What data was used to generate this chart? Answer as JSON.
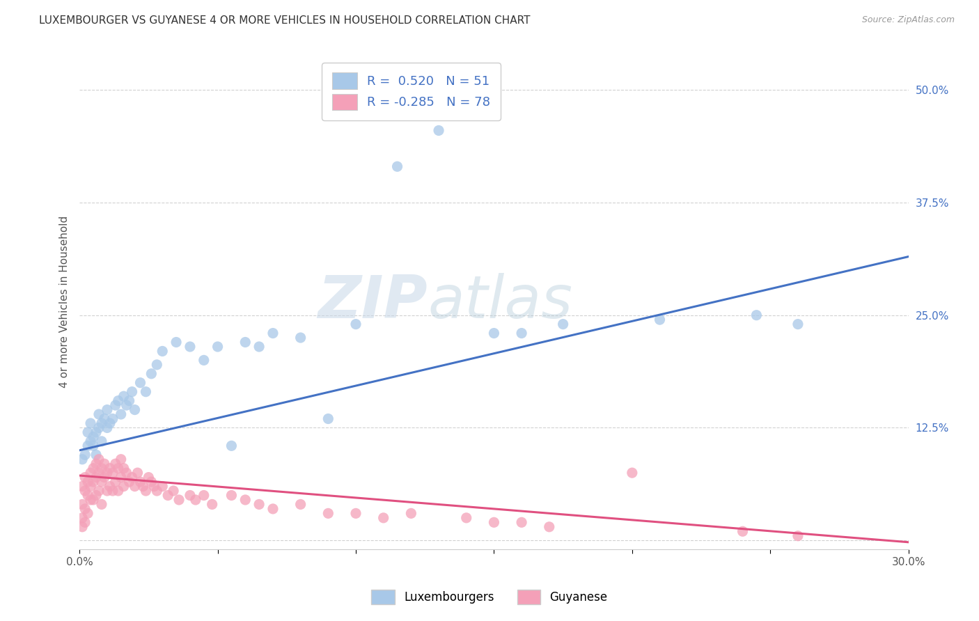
{
  "title": "LUXEMBOURGER VS GUYANESE 4 OR MORE VEHICLES IN HOUSEHOLD CORRELATION CHART",
  "source": "Source: ZipAtlas.com",
  "ylabel": "4 or more Vehicles in Household",
  "xlim": [
    0.0,
    0.3
  ],
  "ylim": [
    -0.01,
    0.54
  ],
  "blue_R": 0.52,
  "blue_N": 51,
  "pink_R": -0.285,
  "pink_N": 78,
  "blue_color": "#a8c8e8",
  "pink_color": "#f4a0b8",
  "blue_line_color": "#4472c4",
  "pink_line_color": "#e05080",
  "background_color": "#ffffff",
  "grid_color": "#cccccc",
  "watermark_zip": "ZIP",
  "watermark_atlas": "atlas",
  "legend_labels": [
    "Luxembourgers",
    "Guyanese"
  ],
  "blue_scatter_x": [
    0.001,
    0.002,
    0.003,
    0.003,
    0.004,
    0.004,
    0.005,
    0.005,
    0.006,
    0.006,
    0.007,
    0.007,
    0.008,
    0.008,
    0.009,
    0.01,
    0.01,
    0.011,
    0.012,
    0.013,
    0.014,
    0.015,
    0.016,
    0.017,
    0.018,
    0.019,
    0.02,
    0.022,
    0.024,
    0.026,
    0.028,
    0.03,
    0.035,
    0.04,
    0.045,
    0.05,
    0.055,
    0.06,
    0.065,
    0.07,
    0.08,
    0.09,
    0.1,
    0.115,
    0.13,
    0.15,
    0.16,
    0.175,
    0.21,
    0.245,
    0.26
  ],
  "blue_scatter_y": [
    0.09,
    0.095,
    0.105,
    0.12,
    0.11,
    0.13,
    0.115,
    0.105,
    0.12,
    0.095,
    0.125,
    0.14,
    0.11,
    0.13,
    0.135,
    0.125,
    0.145,
    0.13,
    0.135,
    0.15,
    0.155,
    0.14,
    0.16,
    0.15,
    0.155,
    0.165,
    0.145,
    0.175,
    0.165,
    0.185,
    0.195,
    0.21,
    0.22,
    0.215,
    0.2,
    0.215,
    0.105,
    0.22,
    0.215,
    0.23,
    0.225,
    0.135,
    0.24,
    0.415,
    0.455,
    0.23,
    0.23,
    0.24,
    0.245,
    0.25,
    0.24
  ],
  "pink_scatter_x": [
    0.001,
    0.001,
    0.001,
    0.001,
    0.002,
    0.002,
    0.002,
    0.002,
    0.003,
    0.003,
    0.003,
    0.004,
    0.004,
    0.004,
    0.005,
    0.005,
    0.005,
    0.006,
    0.006,
    0.006,
    0.007,
    0.007,
    0.007,
    0.008,
    0.008,
    0.008,
    0.009,
    0.009,
    0.01,
    0.01,
    0.011,
    0.011,
    0.012,
    0.012,
    0.013,
    0.013,
    0.014,
    0.014,
    0.015,
    0.015,
    0.016,
    0.016,
    0.017,
    0.018,
    0.019,
    0.02,
    0.021,
    0.022,
    0.023,
    0.024,
    0.025,
    0.026,
    0.027,
    0.028,
    0.03,
    0.032,
    0.034,
    0.036,
    0.04,
    0.042,
    0.045,
    0.048,
    0.055,
    0.06,
    0.065,
    0.07,
    0.08,
    0.09,
    0.1,
    0.11,
    0.12,
    0.14,
    0.15,
    0.16,
    0.17,
    0.2,
    0.24,
    0.26
  ],
  "pink_scatter_y": [
    0.06,
    0.04,
    0.025,
    0.015,
    0.07,
    0.055,
    0.035,
    0.02,
    0.065,
    0.05,
    0.03,
    0.075,
    0.06,
    0.045,
    0.08,
    0.065,
    0.045,
    0.085,
    0.07,
    0.05,
    0.09,
    0.075,
    0.055,
    0.08,
    0.065,
    0.04,
    0.085,
    0.07,
    0.075,
    0.055,
    0.08,
    0.06,
    0.075,
    0.055,
    0.085,
    0.065,
    0.08,
    0.055,
    0.09,
    0.07,
    0.08,
    0.06,
    0.075,
    0.065,
    0.07,
    0.06,
    0.075,
    0.065,
    0.06,
    0.055,
    0.07,
    0.065,
    0.06,
    0.055,
    0.06,
    0.05,
    0.055,
    0.045,
    0.05,
    0.045,
    0.05,
    0.04,
    0.05,
    0.045,
    0.04,
    0.035,
    0.04,
    0.03,
    0.03,
    0.025,
    0.03,
    0.025,
    0.02,
    0.02,
    0.015,
    0.075,
    0.01,
    0.005
  ],
  "blue_line_x": [
    0.0,
    0.3
  ],
  "blue_line_y": [
    0.1,
    0.315
  ],
  "pink_line_x": [
    0.0,
    0.3
  ],
  "pink_line_y": [
    0.072,
    -0.002
  ]
}
